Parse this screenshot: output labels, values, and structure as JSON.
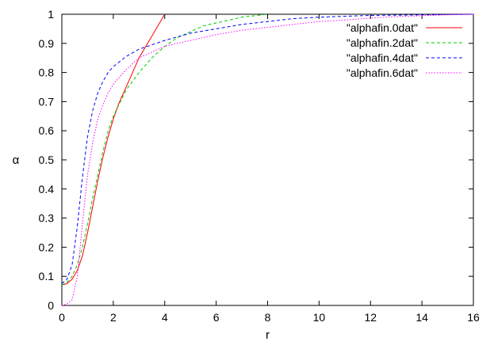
{
  "chart_data": {
    "type": "line",
    "xlabel": "r",
    "ylabel": "α",
    "xlim": [
      0,
      16
    ],
    "ylim": [
      0,
      1
    ],
    "x_ticks": [
      "0",
      "2",
      "4",
      "6",
      "8",
      "10",
      "12",
      "14",
      "16"
    ],
    "y_ticks": [
      "0",
      "0.1",
      "0.2",
      "0.3",
      "0.4",
      "0.5",
      "0.6",
      "0.7",
      "0.8",
      "0.9",
      "1"
    ],
    "grid": false,
    "legend_position": "top-right",
    "series": [
      {
        "name": "\"alphafin.0dat\"",
        "color": "#ff0000",
        "dash": "solid",
        "points": [
          [
            0,
            0.07
          ],
          [
            0.2,
            0.075
          ],
          [
            0.4,
            0.09
          ],
          [
            0.6,
            0.12
          ],
          [
            0.8,
            0.17
          ],
          [
            1.0,
            0.25
          ],
          [
            1.2,
            0.34
          ],
          [
            1.4,
            0.43
          ],
          [
            1.6,
            0.51
          ],
          [
            1.8,
            0.58
          ],
          [
            2.0,
            0.64
          ],
          [
            2.2,
            0.69
          ],
          [
            2.4,
            0.73
          ],
          [
            2.6,
            0.77
          ],
          [
            2.8,
            0.81
          ],
          [
            3.0,
            0.85
          ],
          [
            3.2,
            0.88
          ],
          [
            3.4,
            0.91
          ],
          [
            3.6,
            0.94
          ],
          [
            3.8,
            0.97
          ],
          [
            4.0,
            1.0
          ]
        ]
      },
      {
        "name": "\"alphafin.2dat\"",
        "color": "#00cc00",
        "dash": "dashed",
        "points": [
          [
            0,
            0.07
          ],
          [
            0.2,
            0.08
          ],
          [
            0.4,
            0.1
          ],
          [
            0.6,
            0.14
          ],
          [
            0.8,
            0.2
          ],
          [
            1.0,
            0.28
          ],
          [
            1.2,
            0.37
          ],
          [
            1.4,
            0.45
          ],
          [
            1.6,
            0.53
          ],
          [
            1.8,
            0.6
          ],
          [
            2.0,
            0.65
          ],
          [
            2.5,
            0.74
          ],
          [
            3,
            0.8
          ],
          [
            3.5,
            0.85
          ],
          [
            4,
            0.89
          ],
          [
            4.5,
            0.92
          ],
          [
            5,
            0.94
          ],
          [
            5.5,
            0.96
          ],
          [
            6,
            0.97
          ],
          [
            6.5,
            0.98
          ],
          [
            7,
            0.99
          ],
          [
            7.5,
            0.995
          ],
          [
            8,
            1.0
          ]
        ]
      },
      {
        "name": "\"alphafin.4dat\"",
        "color": "#0000ff",
        "dash": "dashed",
        "points": [
          [
            0,
            0.075
          ],
          [
            0.2,
            0.09
          ],
          [
            0.4,
            0.14
          ],
          [
            0.6,
            0.27
          ],
          [
            0.8,
            0.44
          ],
          [
            1.0,
            0.58
          ],
          [
            1.2,
            0.67
          ],
          [
            1.4,
            0.73
          ],
          [
            1.6,
            0.77
          ],
          [
            1.8,
            0.8
          ],
          [
            2.0,
            0.82
          ],
          [
            2.5,
            0.855
          ],
          [
            3,
            0.88
          ],
          [
            4,
            0.91
          ],
          [
            5,
            0.935
          ],
          [
            6,
            0.95
          ],
          [
            7,
            0.965
          ],
          [
            8,
            0.975
          ],
          [
            9,
            0.985
          ],
          [
            10,
            0.99
          ],
          [
            11,
            0.993
          ],
          [
            12,
            0.996
          ],
          [
            14,
            0.998
          ],
          [
            16,
            1.0
          ]
        ]
      },
      {
        "name": "\"alphafin.6dat\"",
        "color": "#ff00ff",
        "dash": "dotted",
        "points": [
          [
            0,
            0.0
          ],
          [
            0.2,
            0.005
          ],
          [
            0.4,
            0.02
          ],
          [
            0.6,
            0.1
          ],
          [
            0.8,
            0.28
          ],
          [
            1.0,
            0.45
          ],
          [
            1.2,
            0.56
          ],
          [
            1.4,
            0.64
          ],
          [
            1.6,
            0.69
          ],
          [
            1.8,
            0.73
          ],
          [
            2.0,
            0.76
          ],
          [
            2.5,
            0.81
          ],
          [
            3,
            0.85
          ],
          [
            3.5,
            0.87
          ],
          [
            4,
            0.89
          ],
          [
            5,
            0.91
          ],
          [
            6,
            0.93
          ],
          [
            7,
            0.945
          ],
          [
            8,
            0.955
          ],
          [
            9,
            0.965
          ],
          [
            10,
            0.975
          ],
          [
            11,
            0.98
          ],
          [
            12,
            0.987
          ],
          [
            13,
            0.992
          ],
          [
            14,
            0.995
          ],
          [
            15,
            0.998
          ],
          [
            16,
            1.0
          ]
        ]
      }
    ]
  }
}
